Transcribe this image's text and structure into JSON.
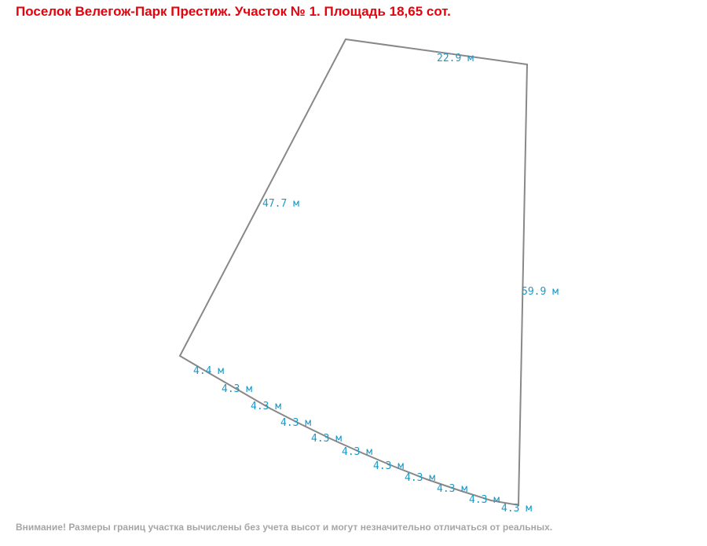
{
  "title": "Поселок Велегож-Парк Престиж. Участок № 1. Площадь 18,65 сот.",
  "edge_labels": [
    "22.9 м",
    "47.7 м",
    "59.9 м",
    "4.4 м",
    "4.3 м",
    "4.3 м",
    "4.3 м",
    "4.3 м",
    "4.3 м",
    "4.3 м",
    "4.3 м",
    "4.3 м",
    "4.3 м",
    "4.3 м"
  ],
  "note": "Внимание! Размеры границ участка вычислены без учета высот и могут незначительно отличаться от реальных."
}
